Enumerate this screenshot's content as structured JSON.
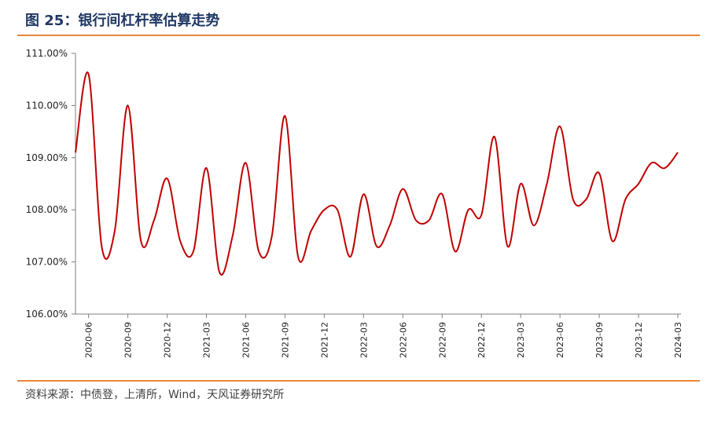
{
  "header": {
    "title": "图 25：银行间杠杆率估算走势"
  },
  "footer": {
    "source": "资料来源：中债登，上清所，Wind，天风证券研究所"
  },
  "colors": {
    "accent_rule": "#e8873a",
    "title": "#1f3864",
    "line": "#c00000"
  },
  "chart_data": {
    "type": "line",
    "title": "",
    "xlabel": "",
    "ylabel": "",
    "ylim": [
      106,
      111
    ],
    "yticks": [
      "106.00%",
      "107.00%",
      "108.00%",
      "109.00%",
      "110.00%",
      "111.00%"
    ],
    "xticks": [
      "2020-06",
      "2020-09",
      "2020-12",
      "2021-03",
      "2021-06",
      "2021-09",
      "2021-12",
      "2022-03",
      "2022-06",
      "2022-09",
      "2022-12",
      "2023-03",
      "2023-06",
      "2023-09",
      "2023-12",
      "2024-03"
    ],
    "grid": false,
    "legend": false,
    "series": [
      {
        "name": "",
        "x": [
          "2020-05",
          "2020-06",
          "2020-07",
          "2020-08",
          "2020-09",
          "2020-10",
          "2020-11",
          "2020-12",
          "2021-01",
          "2021-02",
          "2021-03",
          "2021-04",
          "2021-05",
          "2021-06",
          "2021-07",
          "2021-08",
          "2021-09",
          "2021-10",
          "2021-11",
          "2021-12",
          "2022-01",
          "2022-02",
          "2022-03",
          "2022-04",
          "2022-05",
          "2022-06",
          "2022-07",
          "2022-08",
          "2022-09",
          "2022-10",
          "2022-11",
          "2022-12",
          "2023-01",
          "2023-02",
          "2023-03",
          "2023-04",
          "2023-05",
          "2023-06",
          "2023-07",
          "2023-08",
          "2023-09",
          "2023-10",
          "2023-11",
          "2023-12",
          "2024-01",
          "2024-02",
          "2024-03"
        ],
        "values": [
          109.1,
          110.6,
          107.3,
          107.6,
          110.0,
          107.4,
          107.8,
          108.6,
          107.4,
          107.2,
          108.8,
          106.8,
          107.5,
          108.9,
          107.2,
          107.5,
          109.8,
          107.1,
          107.6,
          108.0,
          108.0,
          107.1,
          108.3,
          107.3,
          107.7,
          108.4,
          107.8,
          107.8,
          108.3,
          107.2,
          108.0,
          107.9,
          109.4,
          107.3,
          108.5,
          107.7,
          108.5,
          109.6,
          108.2,
          108.2,
          108.7,
          107.4,
          108.2,
          108.5,
          108.9,
          108.8,
          109.1
        ]
      }
    ]
  }
}
